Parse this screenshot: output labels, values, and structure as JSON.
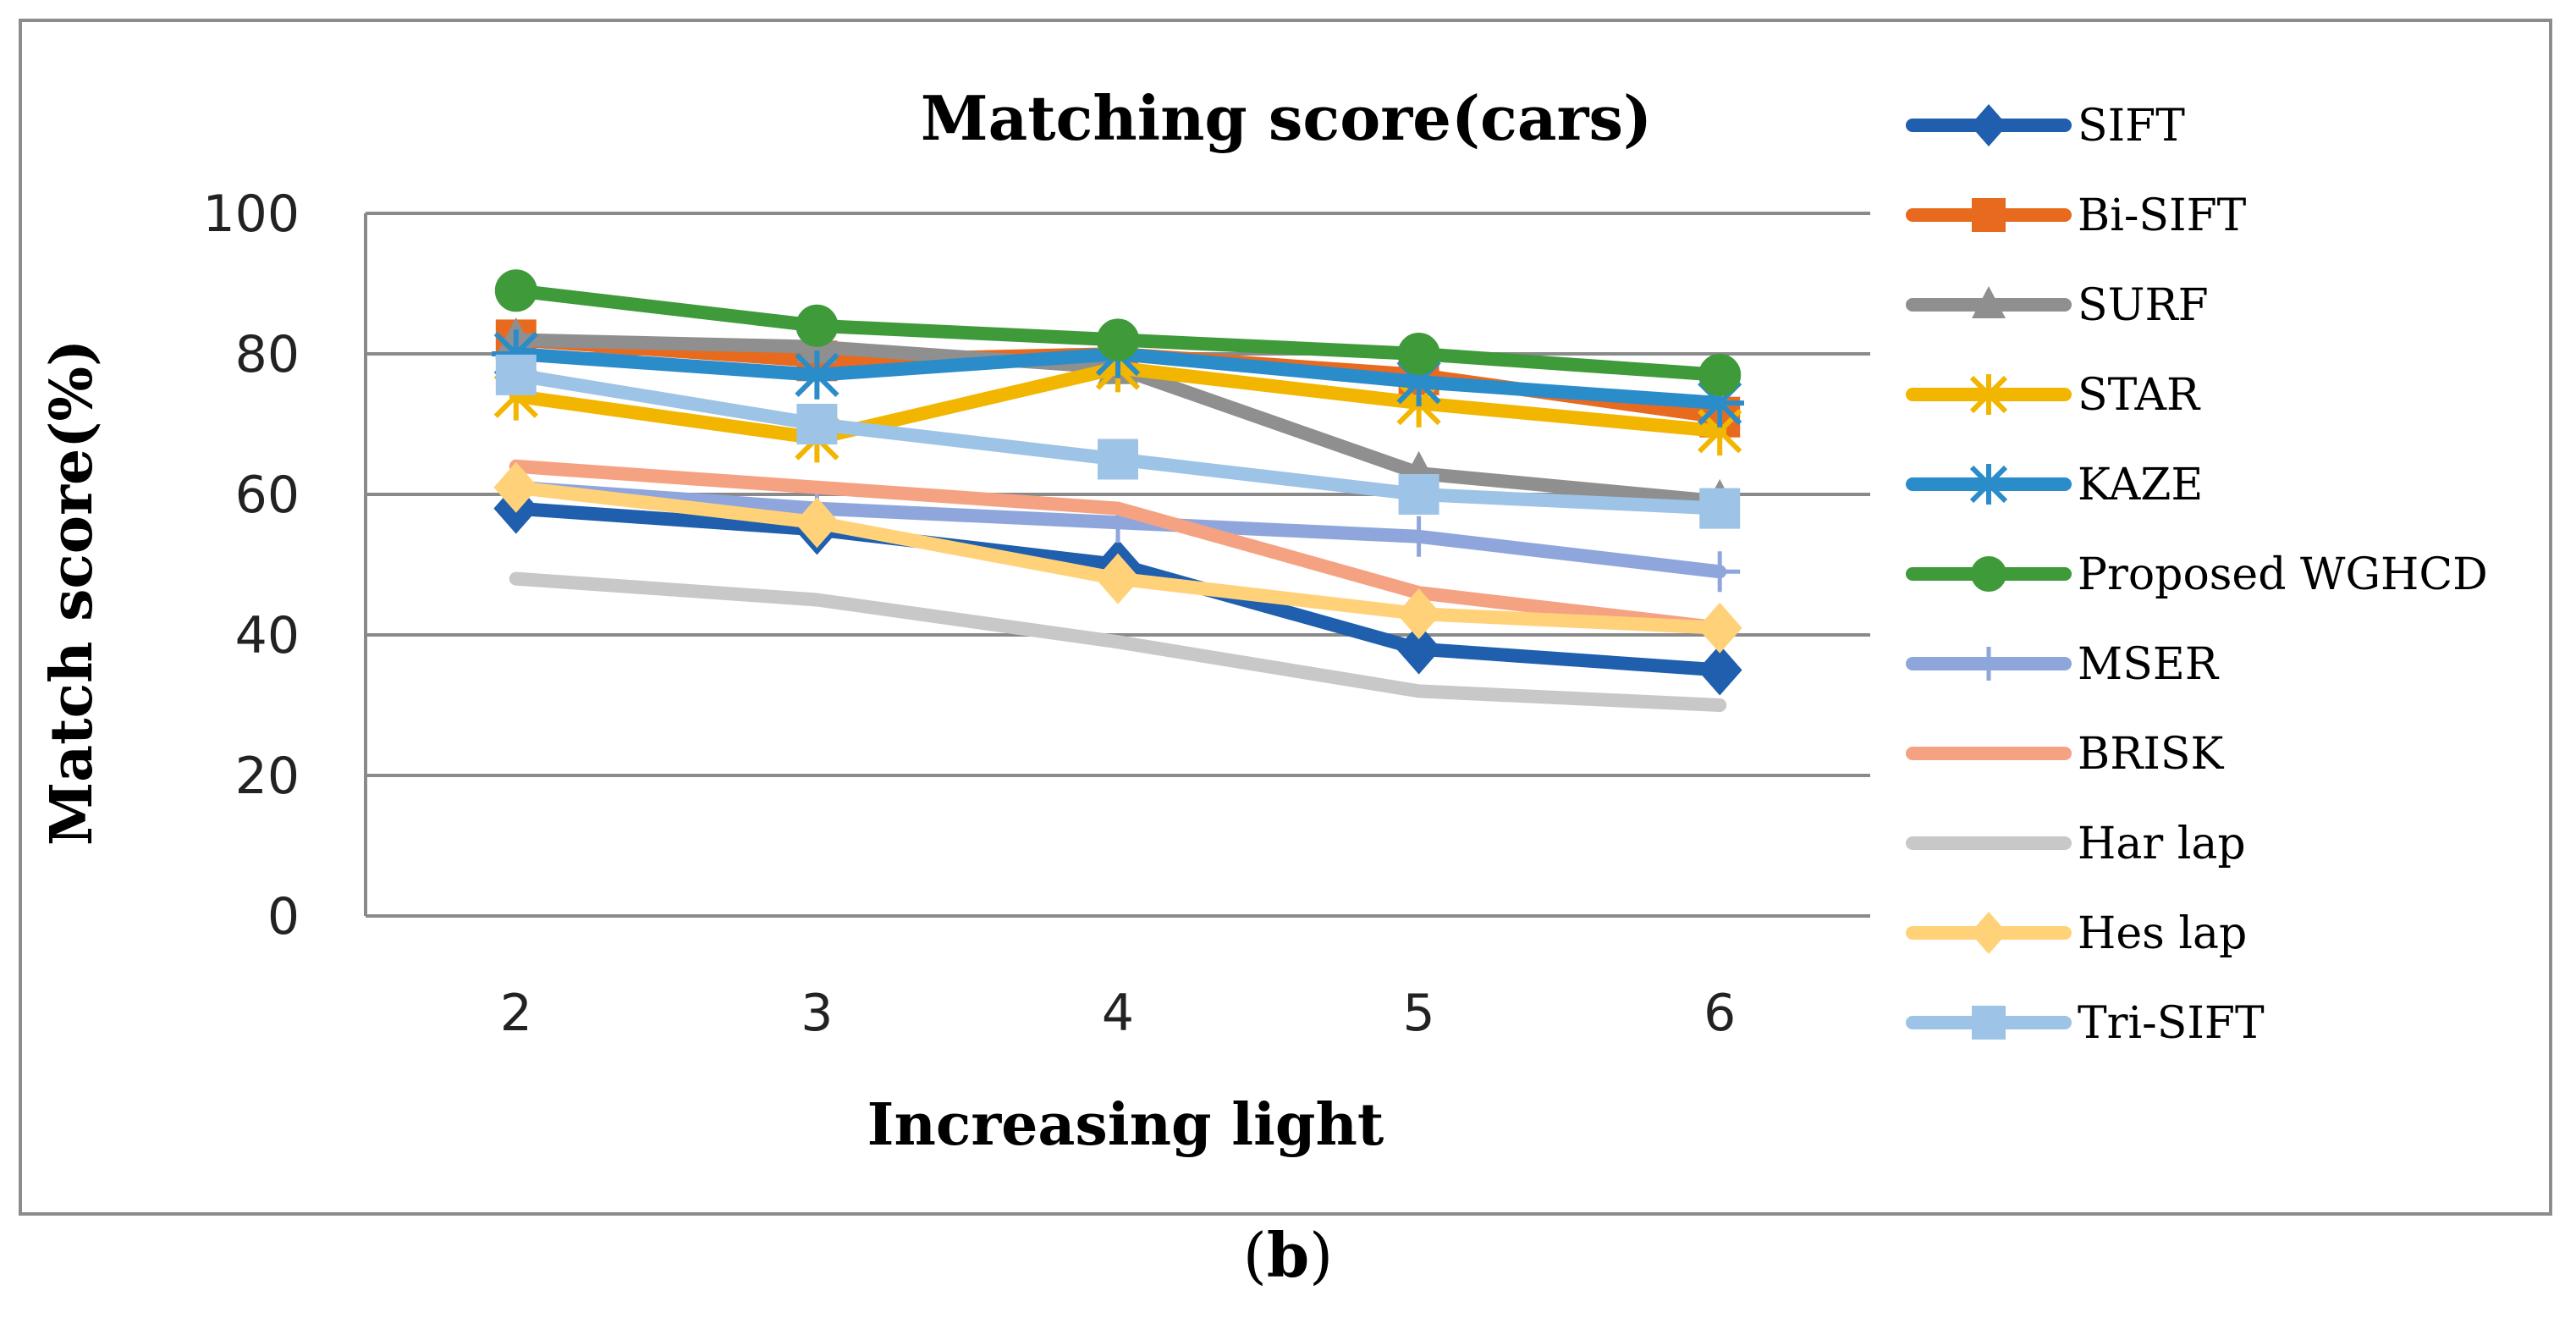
{
  "chart_data": {
    "type": "line",
    "title": "Matching score(cars)",
    "xlabel": "Increasing light",
    "ylabel": "Match score(%)",
    "categories": [
      "2",
      "3",
      "4",
      "5",
      "6"
    ],
    "ylim": [
      0,
      100
    ],
    "yticks": [
      0,
      20,
      40,
      60,
      80,
      100
    ],
    "grid": true,
    "legend_position": "right",
    "series": [
      {
        "name": "SIFT",
        "values": [
          58,
          55,
          50,
          38,
          35
        ],
        "color": "#1f5fad",
        "marker": "diamond"
      },
      {
        "name": "Bi-SIFT",
        "values": [
          82,
          79,
          80,
          77,
          71
        ],
        "color": "#e86a1f",
        "marker": "square"
      },
      {
        "name": "SURF",
        "values": [
          82,
          81,
          78,
          63,
          59
        ],
        "color": "#8f8f8f",
        "marker": "triangle"
      },
      {
        "name": "STAR",
        "values": [
          74,
          68,
          78,
          73,
          69
        ],
        "color": "#f2b500",
        "marker": "star"
      },
      {
        "name": "KAZE",
        "values": [
          80,
          77,
          80,
          76,
          73
        ],
        "color": "#2a8cc9",
        "marker": "asterisk"
      },
      {
        "name": "Proposed WGHCD",
        "values": [
          89,
          84,
          82,
          80,
          77
        ],
        "color": "#3f9a3a",
        "marker": "circle"
      },
      {
        "name": "MSER",
        "values": [
          61,
          58,
          56,
          54,
          49
        ],
        "color": "#8fa6dc",
        "marker": "plus"
      },
      {
        "name": "BRISK",
        "values": [
          64,
          61,
          58,
          46,
          41
        ],
        "color": "#f5a283",
        "marker": "none"
      },
      {
        "name": "Har lap",
        "values": [
          48,
          45,
          39,
          32,
          30
        ],
        "color": "#c8c8c8",
        "marker": "none"
      },
      {
        "name": "Hes lap",
        "values": [
          61,
          56,
          48,
          43,
          41
        ],
        "color": "#ffd27a",
        "marker": "diamond"
      },
      {
        "name": "Tri-SIFT",
        "values": [
          77,
          70,
          65,
          60,
          58
        ],
        "color": "#9dc3e6",
        "marker": "square"
      }
    ]
  },
  "caption": {
    "open": "(",
    "letter": "b",
    "close": ")"
  }
}
